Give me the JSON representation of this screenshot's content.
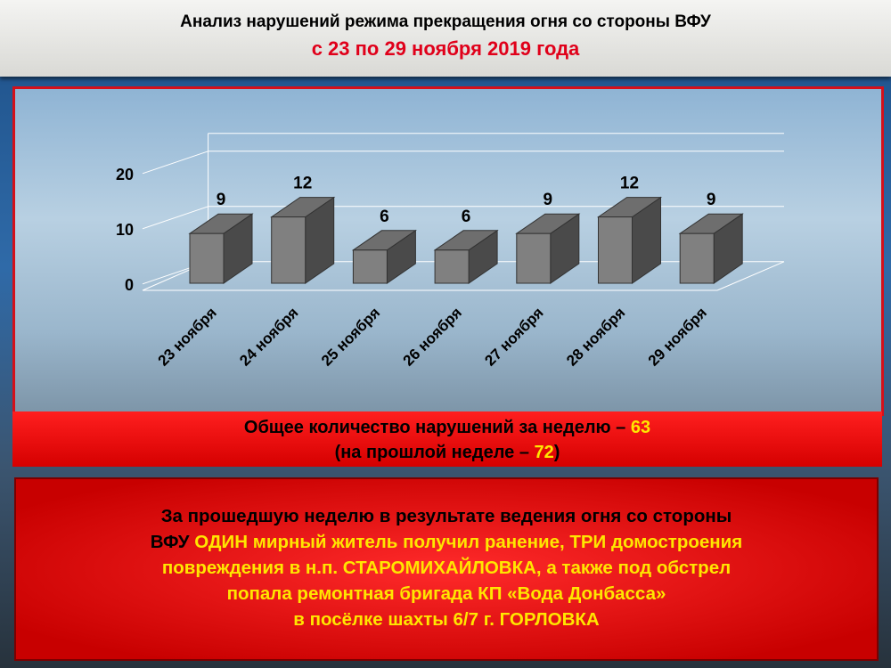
{
  "header": {
    "title": "Анализ нарушений режима прекращения огня со стороны ВФУ",
    "subtitle": "с 23 по 29 ноября 2019 года"
  },
  "chart_data": {
    "type": "bar",
    "style": "3d-column",
    "categories": [
      "23 ноября",
      "24 ноября",
      "25 ноября",
      "26 ноября",
      "27 ноября",
      "28 ноября",
      "29 ноября"
    ],
    "values": [
      9,
      12,
      6,
      6,
      9,
      12,
      9
    ],
    "yticks": [
      0,
      10,
      20
    ],
    "ylim": [
      0,
      20
    ],
    "bar_color": "#808080",
    "grid": true
  },
  "summary": {
    "line1_prefix": "Общее количество нарушений за неделю – ",
    "line1_value": "63",
    "line2_prefix": "(на прошлой неделе – ",
    "line2_value": "72",
    "line2_suffix": ")"
  },
  "details": {
    "line1": "За прошедшую неделю в результате ведения огня со стороны",
    "line2_black": "ВФУ ",
    "line2_rest": "ОДИН мирный житель получил ранение, ТРИ домостроения",
    "line3": "повреждения в н.п. СТАРОМИХАЙЛОВКА, а также под обстрел",
    "line4": "попала  ремонтная бригада КП «Вода Донбасса»",
    "line5": "в посёлке шахты 6/7 г. ГОРЛОВКА"
  }
}
